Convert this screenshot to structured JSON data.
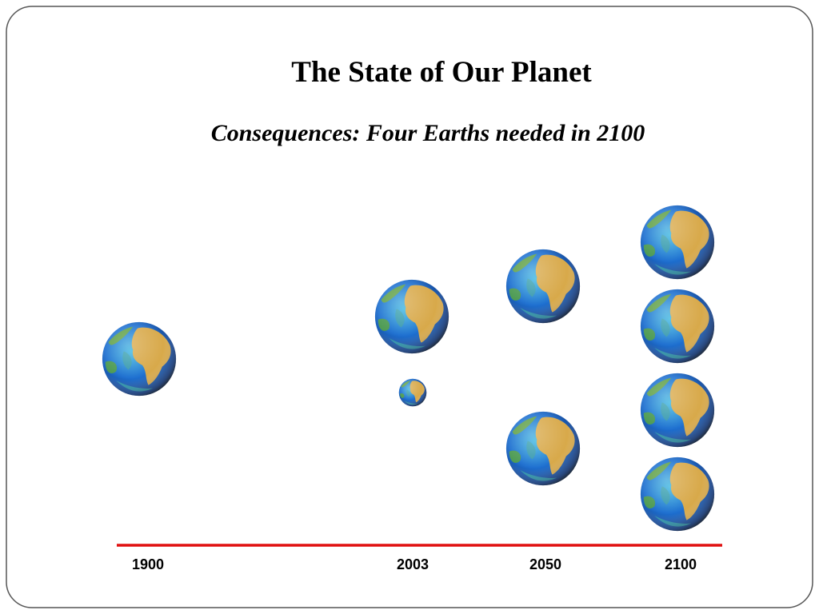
{
  "header": {
    "title": "The State of Our Planet",
    "subtitle": "Consequences: Four Earths needed in 2100"
  },
  "timeline": {
    "labels": [
      "1900",
      "2003",
      "2050",
      "2100"
    ]
  }
}
